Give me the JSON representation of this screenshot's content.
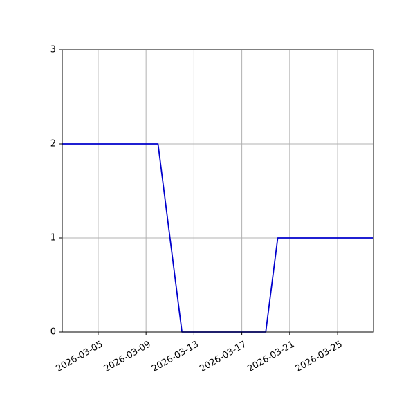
{
  "chart_data": {
    "type": "line",
    "title": "",
    "xlabel": "",
    "ylabel": "",
    "x_axis_type": "date",
    "xlim": [
      "2026-03-02",
      "2026-03-28"
    ],
    "ylim": [
      0,
      3
    ],
    "grid": true,
    "line_color": "#0000cc",
    "x_ticks": [
      "2026-03-05",
      "2026-03-09",
      "2026-03-13",
      "2026-03-17",
      "2026-03-21",
      "2026-03-25"
    ],
    "y_ticks": [
      0,
      1,
      2,
      3
    ],
    "series": [
      {
        "x": [
          "2026-03-02",
          "2026-03-10",
          "2026-03-12",
          "2026-03-19",
          "2026-03-20",
          "2026-03-28"
        ],
        "y": [
          2,
          2,
          0,
          0,
          1,
          1
        ]
      }
    ]
  }
}
